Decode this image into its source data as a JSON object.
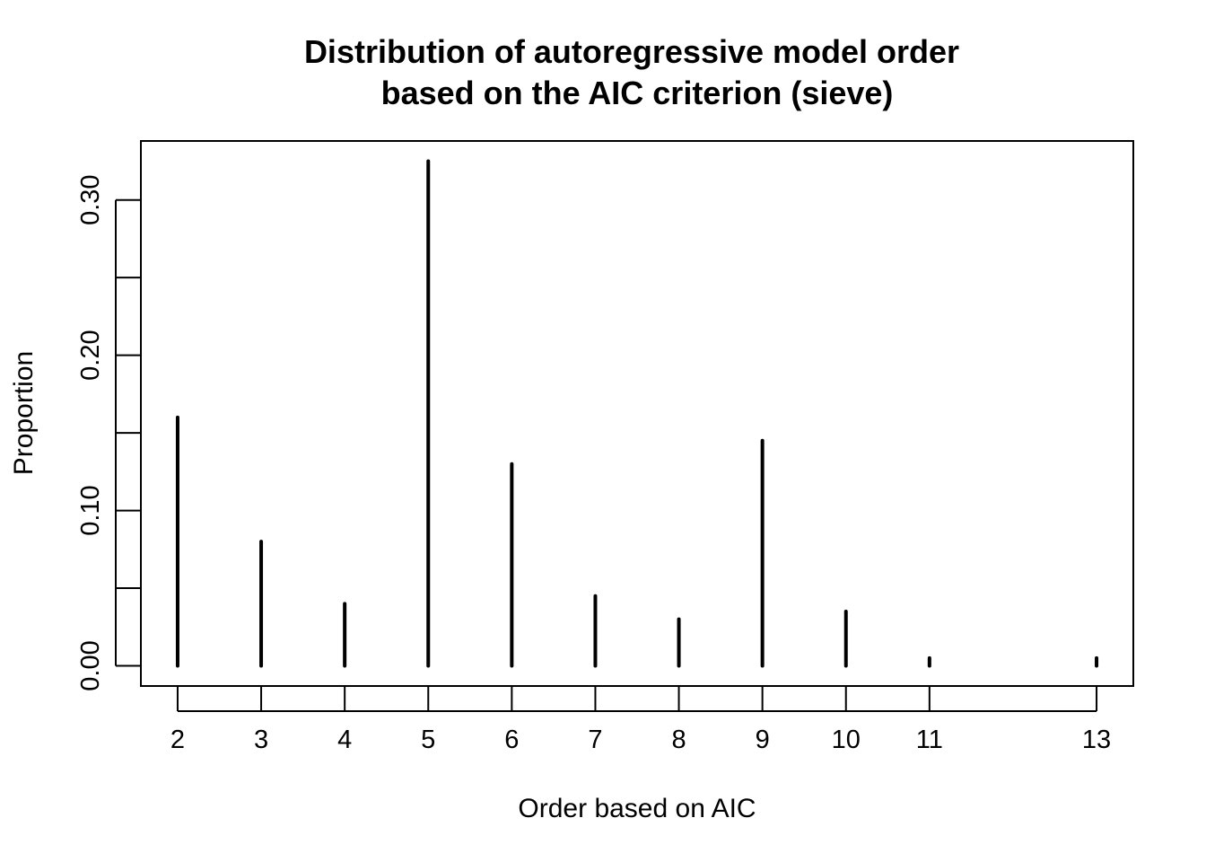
{
  "chart_data": {
    "type": "bar",
    "title_lines": [
      "Distribution of autoregressive model order",
      "based on the AIC criterion (sieve)"
    ],
    "xlabel": "Order based on AIC",
    "ylabel": "Proportion",
    "x": [
      2,
      3,
      4,
      5,
      6,
      7,
      8,
      9,
      10,
      11,
      13
    ],
    "values": [
      0.16,
      0.08,
      0.04,
      0.325,
      0.13,
      0.045,
      0.03,
      0.145,
      0.035,
      0.005,
      0.005
    ],
    "xlim": [
      1.56,
      13.44
    ],
    "ylim": [
      -0.013,
      0.338
    ],
    "x_ticks": [
      2,
      3,
      4,
      5,
      6,
      7,
      8,
      9,
      10,
      11,
      13
    ],
    "x_tick_labels": [
      "2",
      "3",
      "4",
      "5",
      "6",
      "7",
      "8",
      "9",
      "10",
      "11",
      "13"
    ],
    "y_ticks": [
      0.0,
      0.05,
      0.1,
      0.15,
      0.2,
      0.25,
      0.3
    ],
    "y_tick_labels": [
      "0.00",
      "",
      "0.10",
      "",
      "0.20",
      "",
      "0.30"
    ],
    "grid": false,
    "legend": "none",
    "colors": {
      "bars": "#000000",
      "axes": "#000000",
      "background": "#ffffff"
    }
  }
}
